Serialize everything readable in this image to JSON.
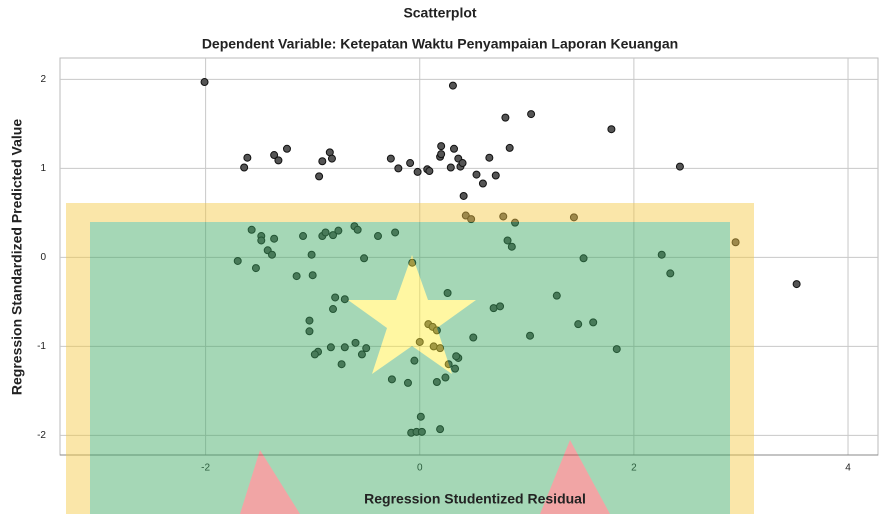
{
  "chart_data": {
    "type": "scatter",
    "title": "Scatterplot",
    "subtitle": "Dependent Variable: Ketepatan Waktu Penyampaian Laporan Keuangan",
    "x_label": "Regression Studentized Residual",
    "y_label": "Regression Standardized Predicted Value",
    "xlim": [
      -3.36,
      4.28
    ],
    "ylim": [
      -2.22,
      2.24
    ],
    "xticks": [
      -2,
      0,
      2,
      4
    ],
    "yticks": [
      -2,
      -1,
      0,
      1,
      2
    ],
    "grid": true,
    "color": "#555555",
    "x": [
      -2.01,
      -1.64,
      -1.61,
      -1.36,
      -1.32,
      -1.24,
      -0.94,
      -0.91,
      -0.84,
      -0.82,
      -0.27,
      -0.2,
      -0.09,
      -0.02,
      0.07,
      0.09,
      0.2,
      0.19,
      0.2,
      0.29,
      0.31,
      0.32,
      0.36,
      0.38,
      0.4,
      0.41,
      0.53,
      0.59,
      0.65,
      0.71,
      0.8,
      0.84,
      1.04,
      1.79,
      2.43,
      0.43,
      0.48,
      0.78,
      0.89,
      1.44,
      2.95,
      0.82,
      0.86,
      2.26,
      2.34,
      3.52,
      1.53,
      -1.57,
      -1.48,
      -1.48,
      -1.36,
      -1.42,
      -1.38,
      -1.7,
      -1.53,
      -1.09,
      -0.91,
      -0.88,
      -0.81,
      -0.76,
      -0.61,
      -0.58,
      -0.39,
      -0.23,
      -1.01,
      -1.15,
      -1.0,
      -0.52,
      -0.07,
      -0.79,
      -0.7,
      -0.81,
      -1.03,
      -1.03,
      -0.95,
      -0.98,
      -0.83,
      -0.7,
      -0.6,
      -0.5,
      -0.54,
      -0.73,
      -0.26,
      -0.11,
      -0.05,
      0.0,
      0.08,
      0.12,
      0.16,
      0.13,
      0.19,
      0.26,
      0.27,
      0.33,
      0.36,
      0.34,
      0.24,
      0.16,
      0.5,
      0.69,
      0.75,
      1.03,
      1.28,
      1.48,
      1.62,
      1.84,
      0.01,
      -0.08,
      -0.03,
      0.02,
      0.19
    ],
    "values": [
      1.97,
      1.01,
      1.12,
      1.15,
      1.09,
      1.22,
      0.91,
      1.08,
      1.18,
      1.11,
      1.11,
      1.0,
      1.06,
      0.96,
      0.99,
      0.97,
      1.25,
      1.13,
      1.16,
      1.01,
      1.93,
      1.22,
      1.11,
      1.02,
      1.06,
      0.69,
      0.93,
      0.83,
      1.12,
      0.92,
      1.57,
      1.23,
      1.61,
      1.44,
      1.02,
      0.47,
      0.43,
      0.46,
      0.39,
      0.45,
      0.17,
      0.19,
      0.12,
      0.03,
      -0.18,
      -0.3,
      -0.01,
      0.31,
      0.24,
      0.19,
      0.21,
      0.08,
      0.03,
      -0.04,
      -0.12,
      0.24,
      0.24,
      0.28,
      0.25,
      0.3,
      0.35,
      0.31,
      0.24,
      0.28,
      0.03,
      -0.21,
      -0.2,
      -0.01,
      -0.06,
      -0.45,
      -0.47,
      -0.58,
      -0.71,
      -0.83,
      -1.06,
      -1.09,
      -1.01,
      -1.01,
      -0.96,
      -1.02,
      -1.09,
      -1.2,
      -1.37,
      -1.41,
      -1.16,
      -0.95,
      -0.75,
      -0.78,
      -0.82,
      -1.0,
      -1.02,
      -0.4,
      -1.2,
      -1.25,
      -1.13,
      -1.11,
      -1.35,
      -1.4,
      -0.9,
      -0.57,
      -0.55,
      -0.88,
      -0.43,
      -0.75,
      -0.73,
      -1.03,
      -1.79,
      -1.97,
      -1.96,
      -1.96,
      -1.93
    ]
  }
}
